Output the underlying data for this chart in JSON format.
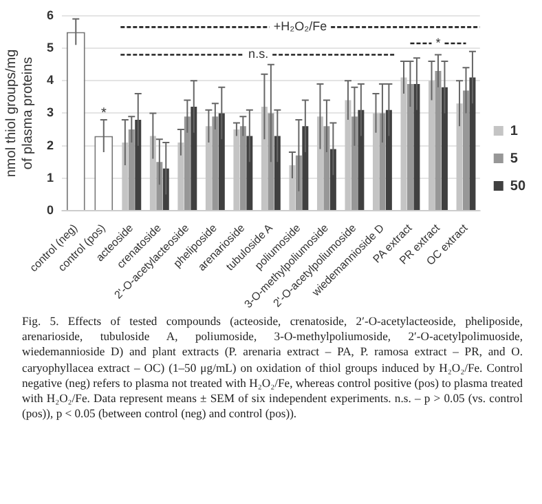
{
  "chart_data": {
    "type": "bar",
    "ylabel": "nmol thiol groups/mg of plasma proteins",
    "categories": [
      "control (neg)",
      "control (pos)",
      "acteoside",
      "crenatoside",
      "2'-O-acetylacteoside",
      "pheliposide",
      "arenarioside",
      "tubuloside A",
      "poliumoside",
      "3-O-methylpoliumoside",
      "2'-O-acetylpoliumoside",
      "wiedemannioside D",
      "PA extract",
      "PR extract",
      "OC extract"
    ],
    "series": [
      {
        "color": "#ffffff",
        "values": [
          5.5,
          2.3,
          null,
          null,
          null,
          null,
          null,
          null,
          null,
          null,
          null,
          null,
          null,
          null,
          null
        ],
        "errors": [
          0.4,
          0.5,
          null,
          null,
          null,
          null,
          null,
          null,
          null,
          null,
          null,
          null,
          null,
          null,
          null
        ]
      },
      {
        "name": "1",
        "color": "#c4c4c4",
        "values": [
          null,
          null,
          2.1,
          2.3,
          2.1,
          2.6,
          2.5,
          3.2,
          1.4,
          2.9,
          3.4,
          3.0,
          4.1,
          4.0,
          3.3
        ],
        "errors": [
          null,
          null,
          0.7,
          0.7,
          0.4,
          0.5,
          0.2,
          1.0,
          0.4,
          1.0,
          0.6,
          0.6,
          0.5,
          0.6,
          0.7
        ]
      },
      {
        "name": "5",
        "color": "#979797",
        "values": [
          null,
          null,
          2.5,
          1.5,
          2.9,
          2.9,
          2.6,
          3.0,
          1.7,
          2.6,
          2.9,
          3.0,
          3.9,
          4.3,
          3.7
        ],
        "errors": [
          null,
          null,
          0.4,
          0.7,
          0.5,
          0.4,
          0.3,
          1.5,
          1.1,
          0.8,
          0.9,
          0.9,
          0.7,
          0.5,
          0.7
        ]
      },
      {
        "name": "50",
        "color": "#404040",
        "values": [
          null,
          null,
          2.8,
          1.3,
          3.2,
          3.0,
          2.3,
          2.3,
          2.6,
          1.9,
          3.1,
          3.1,
          3.9,
          3.8,
          4.1
        ],
        "errors": [
          null,
          null,
          0.8,
          0.8,
          0.8,
          0.8,
          0.8,
          0.8,
          0.8,
          0.8,
          0.8,
          0.8,
          0.8,
          0.8,
          0.8
        ]
      }
    ],
    "ylim": [
      0,
      6
    ],
    "yticks": [
      0,
      1,
      2,
      3,
      4,
      5,
      6
    ],
    "grid": "y",
    "legend": "right",
    "annotations": [
      "+H₂O₂/Fe",
      "n.s.",
      {
        "text": "*",
        "x": "control (pos)",
        "y": 3.0
      },
      "*",
      "Fig. 5. Effects of tested compounds (acteoside, crenatoside, 2′-O-acetylacteoside, pheliposide, arenarioside, tubuloside A, poliumoside, 3-O-methylpoliumoside, 2′-O-acetylpolimuoside, wiedemannioside D) and plant extracts (P. arenaria extract – PA, P. ramosa extract – PR, and O. caryophyllacea extract – OC) (1–50 μg/mL) on oxidation of thiol groups induced by H₂O₂/Fe. Control negative (neg) refers to plasma not treated with H₂O₂/Fe, whereas control positive (pos) to plasma treated with H₂O₂/Fe. Data represent means ± SEM of six independent experiments. n.s. – p > 0.05 (vs. control (pos)), p < 0.05 (between control (neg) and control (pos))."
    ]
  }
}
